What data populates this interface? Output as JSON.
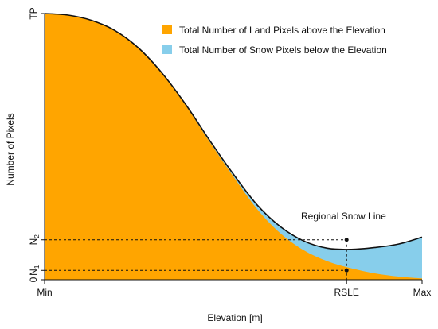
{
  "chart_data": {
    "type": "area",
    "xlabel": "Elevation [m]",
    "ylabel": "Number of Pixels",
    "x_ticks": [
      "Min",
      "RSLE",
      "Max"
    ],
    "y_ticks": {
      "zero": "0",
      "n1": "N",
      "n1_sub": "1",
      "n2": "N",
      "n2_sub": "2",
      "tp": "TP"
    },
    "annotation": "Regional Snow Line",
    "colors": {
      "land": "#FFA500",
      "snow": "#87CEEB",
      "line": "#111111"
    },
    "series": [
      {
        "name": "Total Number of Land Pixels above the Elevation",
        "x": [
          0,
          0.0625,
          0.125,
          0.1875,
          0.25,
          0.3125,
          0.375,
          0.4375,
          0.5,
          0.5625,
          0.625,
          0.6875,
          0.75,
          0.8125,
          0.875,
          0.9375,
          1.0
        ],
        "y": [
          1.0,
          0.994,
          0.974,
          0.935,
          0.868,
          0.771,
          0.652,
          0.517,
          0.388,
          0.266,
          0.174,
          0.11,
          0.069,
          0.043,
          0.024,
          0.012,
          0.005
        ]
      },
      {
        "name": "Total Number of Snow Pixels below the Elevation",
        "x": [
          0,
          0.0625,
          0.125,
          0.1875,
          0.25,
          0.3125,
          0.375,
          0.4375,
          0.5,
          0.5625,
          0.625,
          0.6875,
          0.75,
          0.8125,
          0.875,
          0.9375,
          1.0
        ],
        "y": [
          0,
          0.0,
          0.0,
          0.0,
          0.001,
          0.003,
          0.004,
          0.006,
          0.009,
          0.016,
          0.025,
          0.035,
          0.049,
          0.071,
          0.097,
          0.122,
          0.155
        ]
      }
    ],
    "rsle": {
      "x": 0.8,
      "n1": 0.035,
      "n2": 0.15
    },
    "xlim": [
      0,
      1
    ],
    "ylim": [
      0,
      1
    ]
  }
}
